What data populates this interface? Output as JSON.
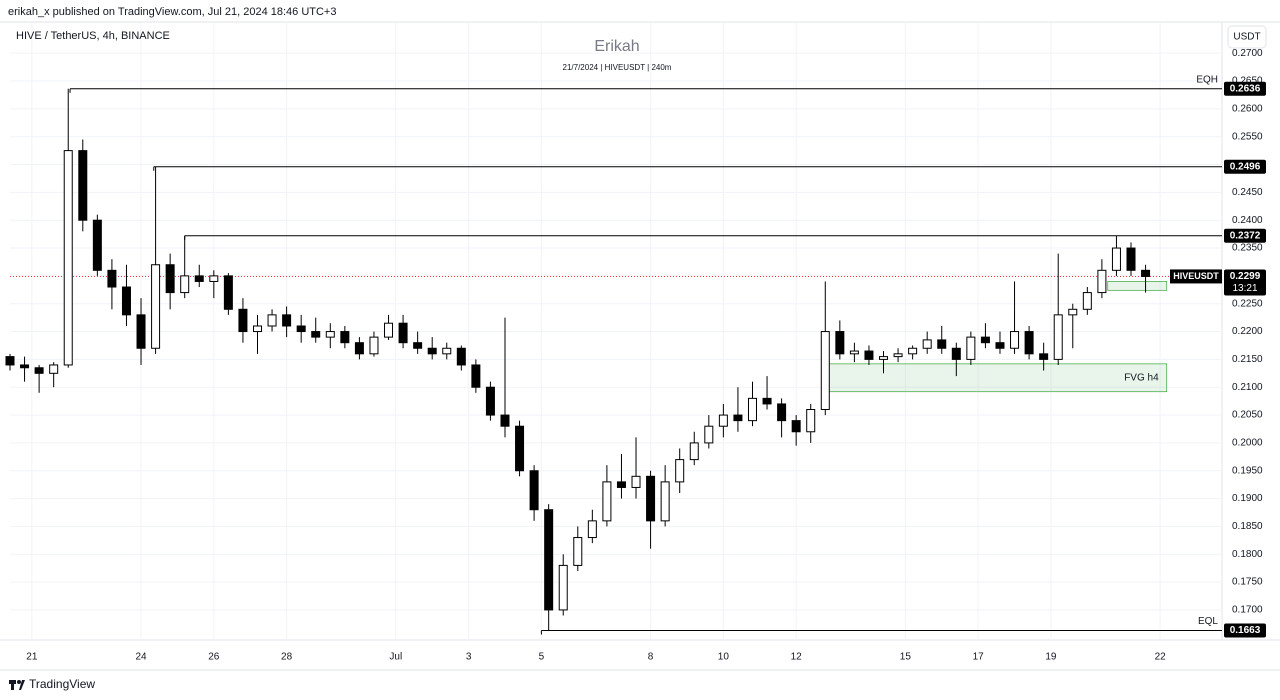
{
  "header": {
    "published": "erikah_x published on TradingView.com, Jul 21, 2024 18:46 UTC+3",
    "brand": "TradingView"
  },
  "chart_data": {
    "type": "candlestick",
    "title": "Erikah",
    "subtitle": "21/7/2024 | HIVEUSDT | 240m",
    "symbol_label": "HIVE / TetherUS, 4h, BINANCE",
    "currency": "USDT",
    "up_color": "#ffffff",
    "down_color": "#000000",
    "grid": true,
    "xlim": [
      -0.6,
      32.7
    ],
    "ylim": [
      0.1646,
      0.2756
    ],
    "xticks": [
      {
        "value": 0,
        "label": "21"
      },
      {
        "value": 3,
        "label": "24"
      },
      {
        "value": 5,
        "label": "26"
      },
      {
        "value": 7,
        "label": "28"
      },
      {
        "value": 10,
        "label": "Jul"
      },
      {
        "value": 12,
        "label": "3"
      },
      {
        "value": 14,
        "label": "5"
      },
      {
        "value": 17,
        "label": "8"
      },
      {
        "value": 19,
        "label": "10"
      },
      {
        "value": 21,
        "label": "12"
      },
      {
        "value": 24,
        "label": "15"
      },
      {
        "value": 26,
        "label": "17"
      },
      {
        "value": 28,
        "label": "19"
      },
      {
        "value": 31,
        "label": "22"
      }
    ],
    "yticks": [
      {
        "value": 0.17,
        "label": "0.1700"
      },
      {
        "value": 0.175,
        "label": "0.1750"
      },
      {
        "value": 0.18,
        "label": "0.1800"
      },
      {
        "value": 0.185,
        "label": "0.1850"
      },
      {
        "value": 0.19,
        "label": "0.1900"
      },
      {
        "value": 0.195,
        "label": "0.1950"
      },
      {
        "value": 0.2,
        "label": "0.2000"
      },
      {
        "value": 0.205,
        "label": "0.2050"
      },
      {
        "value": 0.21,
        "label": "0.2100"
      },
      {
        "value": 0.215,
        "label": "0.2150"
      },
      {
        "value": 0.22,
        "label": "0.2200"
      },
      {
        "value": 0.225,
        "label": "0.2250"
      },
      {
        "value": 0.23,
        "label": "0.2300"
      },
      {
        "value": 0.235,
        "label": "0.2350"
      },
      {
        "value": 0.24,
        "label": "0.2400"
      },
      {
        "value": 0.245,
        "label": "0.2450"
      },
      {
        "value": 0.25,
        "label": "0.2500"
      },
      {
        "value": 0.255,
        "label": "0.2550"
      },
      {
        "value": 0.26,
        "label": "0.2600"
      },
      {
        "value": 0.265,
        "label": "0.2650"
      },
      {
        "value": 0.27,
        "label": "0.2700"
      }
    ],
    "candles": [
      [
        -0.6,
        0.2155,
        0.216,
        0.213,
        0.214
      ],
      [
        -0.2,
        0.214,
        0.2155,
        0.211,
        0.2135
      ],
      [
        0.2,
        0.2135,
        0.214,
        0.209,
        0.2125
      ],
      [
        0.6,
        0.2125,
        0.2145,
        0.21,
        0.214
      ],
      [
        1.0,
        0.214,
        0.2636,
        0.2135,
        0.2525
      ],
      [
        1.4,
        0.2525,
        0.2545,
        0.238,
        0.24
      ],
      [
        1.8,
        0.24,
        0.241,
        0.23,
        0.231
      ],
      [
        2.2,
        0.231,
        0.233,
        0.224,
        0.228
      ],
      [
        2.6,
        0.228,
        0.232,
        0.221,
        0.223
      ],
      [
        3.0,
        0.223,
        0.226,
        0.214,
        0.217
      ],
      [
        3.4,
        0.217,
        0.2496,
        0.216,
        0.232
      ],
      [
        3.8,
        0.232,
        0.234,
        0.224,
        0.227
      ],
      [
        4.2,
        0.227,
        0.2372,
        0.226,
        0.23
      ],
      [
        4.6,
        0.23,
        0.232,
        0.228,
        0.229
      ],
      [
        5.0,
        0.229,
        0.231,
        0.226,
        0.23
      ],
      [
        5.4,
        0.23,
        0.2305,
        0.223,
        0.224
      ],
      [
        5.8,
        0.224,
        0.226,
        0.218,
        0.22
      ],
      [
        6.2,
        0.22,
        0.223,
        0.216,
        0.221
      ],
      [
        6.6,
        0.221,
        0.224,
        0.22,
        0.223
      ],
      [
        7.0,
        0.223,
        0.2245,
        0.219,
        0.221
      ],
      [
        7.4,
        0.221,
        0.223,
        0.218,
        0.22
      ],
      [
        7.8,
        0.22,
        0.2225,
        0.218,
        0.219
      ],
      [
        8.2,
        0.219,
        0.2215,
        0.217,
        0.22
      ],
      [
        8.6,
        0.22,
        0.221,
        0.217,
        0.218
      ],
      [
        9.0,
        0.218,
        0.219,
        0.215,
        0.216
      ],
      [
        9.4,
        0.216,
        0.22,
        0.2155,
        0.219
      ],
      [
        9.8,
        0.219,
        0.223,
        0.2185,
        0.2215
      ],
      [
        10.2,
        0.2215,
        0.223,
        0.217,
        0.218
      ],
      [
        10.6,
        0.218,
        0.22,
        0.216,
        0.217
      ],
      [
        11.0,
        0.217,
        0.219,
        0.215,
        0.216
      ],
      [
        11.4,
        0.216,
        0.218,
        0.215,
        0.217
      ],
      [
        11.8,
        0.217,
        0.2175,
        0.213,
        0.214
      ],
      [
        12.2,
        0.214,
        0.215,
        0.209,
        0.21
      ],
      [
        12.6,
        0.21,
        0.211,
        0.204,
        0.205
      ],
      [
        13.0,
        0.205,
        0.2225,
        0.201,
        0.203
      ],
      [
        13.4,
        0.203,
        0.204,
        0.194,
        0.195
      ],
      [
        13.8,
        0.195,
        0.196,
        0.186,
        0.188
      ],
      [
        14.2,
        0.188,
        0.189,
        0.1663,
        0.17
      ],
      [
        14.6,
        0.17,
        0.18,
        0.169,
        0.178
      ],
      [
        15.0,
        0.178,
        0.185,
        0.177,
        0.183
      ],
      [
        15.4,
        0.183,
        0.188,
        0.182,
        0.186
      ],
      [
        15.8,
        0.186,
        0.196,
        0.185,
        0.193
      ],
      [
        16.2,
        0.193,
        0.198,
        0.19,
        0.192
      ],
      [
        16.6,
        0.192,
        0.201,
        0.19,
        0.194
      ],
      [
        17.0,
        0.194,
        0.195,
        0.181,
        0.186
      ],
      [
        17.4,
        0.186,
        0.196,
        0.185,
        0.193
      ],
      [
        17.8,
        0.193,
        0.199,
        0.191,
        0.197
      ],
      [
        18.2,
        0.197,
        0.202,
        0.196,
        0.2
      ],
      [
        18.6,
        0.2,
        0.205,
        0.199,
        0.203
      ],
      [
        19.0,
        0.203,
        0.207,
        0.201,
        0.205
      ],
      [
        19.4,
        0.205,
        0.21,
        0.202,
        0.204
      ],
      [
        19.8,
        0.204,
        0.211,
        0.203,
        0.208
      ],
      [
        20.2,
        0.208,
        0.212,
        0.206,
        0.207
      ],
      [
        20.6,
        0.207,
        0.208,
        0.201,
        0.204
      ],
      [
        21.0,
        0.204,
        0.205,
        0.1995,
        0.202
      ],
      [
        21.4,
        0.202,
        0.207,
        0.2,
        0.206
      ],
      [
        21.8,
        0.206,
        0.229,
        0.205,
        0.22
      ],
      [
        22.2,
        0.22,
        0.222,
        0.215,
        0.216
      ],
      [
        22.6,
        0.216,
        0.218,
        0.2145,
        0.2165
      ],
      [
        23.0,
        0.2165,
        0.2175,
        0.214,
        0.215
      ],
      [
        23.4,
        0.215,
        0.2165,
        0.2125,
        0.2155
      ],
      [
        23.8,
        0.2155,
        0.217,
        0.2145,
        0.216
      ],
      [
        24.2,
        0.216,
        0.2175,
        0.215,
        0.217
      ],
      [
        24.6,
        0.217,
        0.22,
        0.216,
        0.2185
      ],
      [
        25.0,
        0.2185,
        0.221,
        0.216,
        0.217
      ],
      [
        25.4,
        0.217,
        0.218,
        0.212,
        0.215
      ],
      [
        25.8,
        0.215,
        0.22,
        0.214,
        0.219
      ],
      [
        26.2,
        0.219,
        0.2215,
        0.217,
        0.218
      ],
      [
        26.6,
        0.218,
        0.22,
        0.216,
        0.217
      ],
      [
        27.0,
        0.217,
        0.229,
        0.216,
        0.22
      ],
      [
        27.4,
        0.22,
        0.221,
        0.215,
        0.216
      ],
      [
        27.8,
        0.216,
        0.218,
        0.213,
        0.215
      ],
      [
        28.2,
        0.215,
        0.234,
        0.214,
        0.223
      ],
      [
        28.6,
        0.223,
        0.225,
        0.217,
        0.224
      ],
      [
        29.0,
        0.224,
        0.228,
        0.223,
        0.227
      ],
      [
        29.4,
        0.227,
        0.233,
        0.226,
        0.231
      ],
      [
        29.8,
        0.231,
        0.2372,
        0.23,
        0.235
      ],
      [
        30.2,
        0.235,
        0.236,
        0.23,
        0.231
      ],
      [
        30.6,
        0.231,
        0.232,
        0.227,
        0.2299
      ]
    ],
    "levels": [
      {
        "label": "EQH",
        "value": 0.2636,
        "start": 1.05
      },
      {
        "value": 0.2496,
        "start": 3.35
      },
      {
        "value": 0.2372,
        "start": 4.2
      },
      {
        "label": "EQL",
        "value": 0.1663,
        "start": 14.0
      }
    ],
    "zones": [
      {
        "label": "FVG h4",
        "x": [
          21.87,
          31.18
        ],
        "y": [
          0.2092,
          0.2142
        ]
      },
      {
        "x": [
          29.56,
          31.18
        ],
        "y": [
          0.2274,
          0.229
        ]
      }
    ],
    "last": {
      "symbol": "HIVEUSDT",
      "value": 0.2299,
      "countdown": "13:21"
    }
  }
}
